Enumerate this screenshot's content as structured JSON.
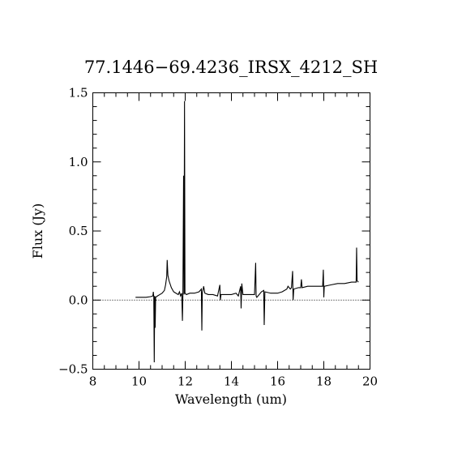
{
  "chart_data": {
    "type": "line",
    "title": "77.1446−69.4236_IRSX_4212_SH",
    "xlabel": "Wavelength (um)",
    "ylabel": "Flux (Jy)",
    "xlim": [
      8,
      20
    ],
    "ylim": [
      -0.5,
      1.5
    ],
    "x_ticks": [
      "8",
      "10",
      "12",
      "14",
      "16",
      "18",
      "20"
    ],
    "y_ticks": [
      "−0.5",
      "0.0",
      "0.5",
      "1.0",
      "1.5"
    ],
    "x_minor_step": 0.5,
    "y_minor_step": 0.1,
    "grid": false,
    "zero_line": {
      "y": 0,
      "style": "dotted"
    },
    "series": [
      {
        "values": [
          [
            9.85,
            0.02
          ],
          [
            10.1,
            0.02
          ],
          [
            10.3,
            0.02
          ],
          [
            10.5,
            0.025
          ],
          [
            10.6,
            0.03
          ],
          [
            10.62,
            0.06
          ],
          [
            10.64,
            0.02
          ],
          [
            10.66,
            -0.45
          ],
          [
            10.68,
            0.03
          ],
          [
            10.7,
            -0.2
          ],
          [
            10.72,
            0.02
          ],
          [
            10.8,
            0.03
          ],
          [
            10.9,
            0.04
          ],
          [
            11.0,
            0.05
          ],
          [
            11.1,
            0.07
          ],
          [
            11.15,
            0.11
          ],
          [
            11.2,
            0.17
          ],
          [
            11.22,
            0.29
          ],
          [
            11.25,
            0.18
          ],
          [
            11.3,
            0.14
          ],
          [
            11.4,
            0.09
          ],
          [
            11.5,
            0.06
          ],
          [
            11.6,
            0.05
          ],
          [
            11.7,
            0.04
          ],
          [
            11.75,
            0.06
          ],
          [
            11.8,
            0.03
          ],
          [
            11.85,
            0.05
          ],
          [
            11.88,
            -0.15
          ],
          [
            11.9,
            0.04
          ],
          [
            11.93,
            0.9
          ],
          [
            11.95,
            0.04
          ],
          [
            11.97,
            1.44
          ],
          [
            11.99,
            0.05
          ],
          [
            12.05,
            0.04
          ],
          [
            12.2,
            0.05
          ],
          [
            12.4,
            0.05
          ],
          [
            12.6,
            0.06
          ],
          [
            12.7,
            0.08
          ],
          [
            12.72,
            -0.22
          ],
          [
            12.74,
            0.05
          ],
          [
            12.8,
            0.1
          ],
          [
            12.85,
            0.05
          ],
          [
            13.0,
            0.04
          ],
          [
            13.2,
            0.04
          ],
          [
            13.4,
            0.03
          ],
          [
            13.5,
            0.11
          ],
          [
            13.52,
            0.0
          ],
          [
            13.55,
            0.04
          ],
          [
            13.8,
            0.04
          ],
          [
            14.0,
            0.04
          ],
          [
            14.2,
            0.05
          ],
          [
            14.3,
            0.03
          ],
          [
            14.4,
            0.1
          ],
          [
            14.42,
            -0.06
          ],
          [
            14.45,
            0.12
          ],
          [
            14.5,
            0.04
          ],
          [
            14.8,
            0.04
          ],
          [
            15.0,
            0.04
          ],
          [
            15.05,
            0.27
          ],
          [
            15.07,
            0.03
          ],
          [
            15.1,
            0.02
          ],
          [
            15.3,
            0.06
          ],
          [
            15.4,
            0.07
          ],
          [
            15.42,
            -0.18
          ],
          [
            15.45,
            0.06
          ],
          [
            15.7,
            0.05
          ],
          [
            16.0,
            0.05
          ],
          [
            16.2,
            0.06
          ],
          [
            16.4,
            0.08
          ],
          [
            16.45,
            0.1
          ],
          [
            16.55,
            0.08
          ],
          [
            16.6,
            0.09
          ],
          [
            16.65,
            0.21
          ],
          [
            16.67,
            0.0
          ],
          [
            16.7,
            0.08
          ],
          [
            16.9,
            0.09
          ],
          [
            17.0,
            0.09
          ],
          [
            17.03,
            0.15
          ],
          [
            17.06,
            0.09
          ],
          [
            17.3,
            0.1
          ],
          [
            17.6,
            0.1
          ],
          [
            17.95,
            0.1
          ],
          [
            17.98,
            0.22
          ],
          [
            18.0,
            0.02
          ],
          [
            18.02,
            0.1
          ],
          [
            18.3,
            0.11
          ],
          [
            18.6,
            0.12
          ],
          [
            18.9,
            0.12
          ],
          [
            19.2,
            0.13
          ],
          [
            19.4,
            0.13
          ],
          [
            19.42,
            0.38
          ],
          [
            19.44,
            0.14
          ],
          [
            19.5,
            0.13
          ]
        ]
      }
    ]
  }
}
